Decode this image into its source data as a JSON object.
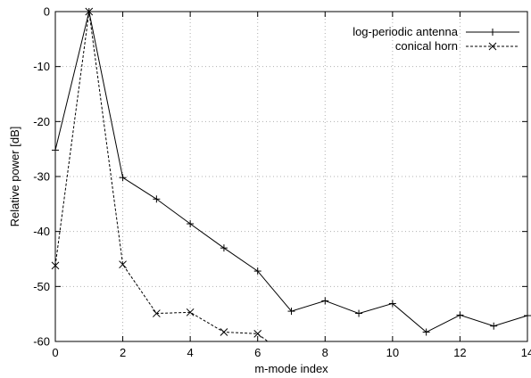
{
  "chart_data": {
    "type": "line",
    "title": "",
    "xlabel": "m-mode index",
    "ylabel": "Relative power [dB]",
    "xlim": [
      0,
      14
    ],
    "ylim": [
      -60,
      0
    ],
    "xticks": [
      0,
      2,
      4,
      6,
      8,
      10,
      12,
      14
    ],
    "yticks": [
      0,
      -10,
      -20,
      -30,
      -40,
      -50,
      -60
    ],
    "grid": true,
    "legend_position": "top-right",
    "series": [
      {
        "name": "log-periodic antenna",
        "line_style": "solid",
        "marker": "plus",
        "x": [
          0,
          1,
          2,
          3,
          4,
          5,
          6,
          7,
          8,
          9,
          10,
          11,
          12,
          13,
          14
        ],
        "y": [
          -25.2,
          0,
          -30.2,
          -34.1,
          -38.6,
          -43.0,
          -47.2,
          -54.5,
          -52.6,
          -54.9,
          -53.1,
          -58.3,
          -55.2,
          -57.2,
          -55.3
        ]
      },
      {
        "name": "conical horn",
        "line_style": "dashed",
        "marker": "cross",
        "x": [
          0,
          1,
          2,
          3,
          4,
          5,
          6,
          6.3
        ],
        "y": [
          -46.2,
          0,
          -46.0,
          -54.9,
          -54.7,
          -58.3,
          -58.6,
          -60
        ]
      }
    ]
  }
}
